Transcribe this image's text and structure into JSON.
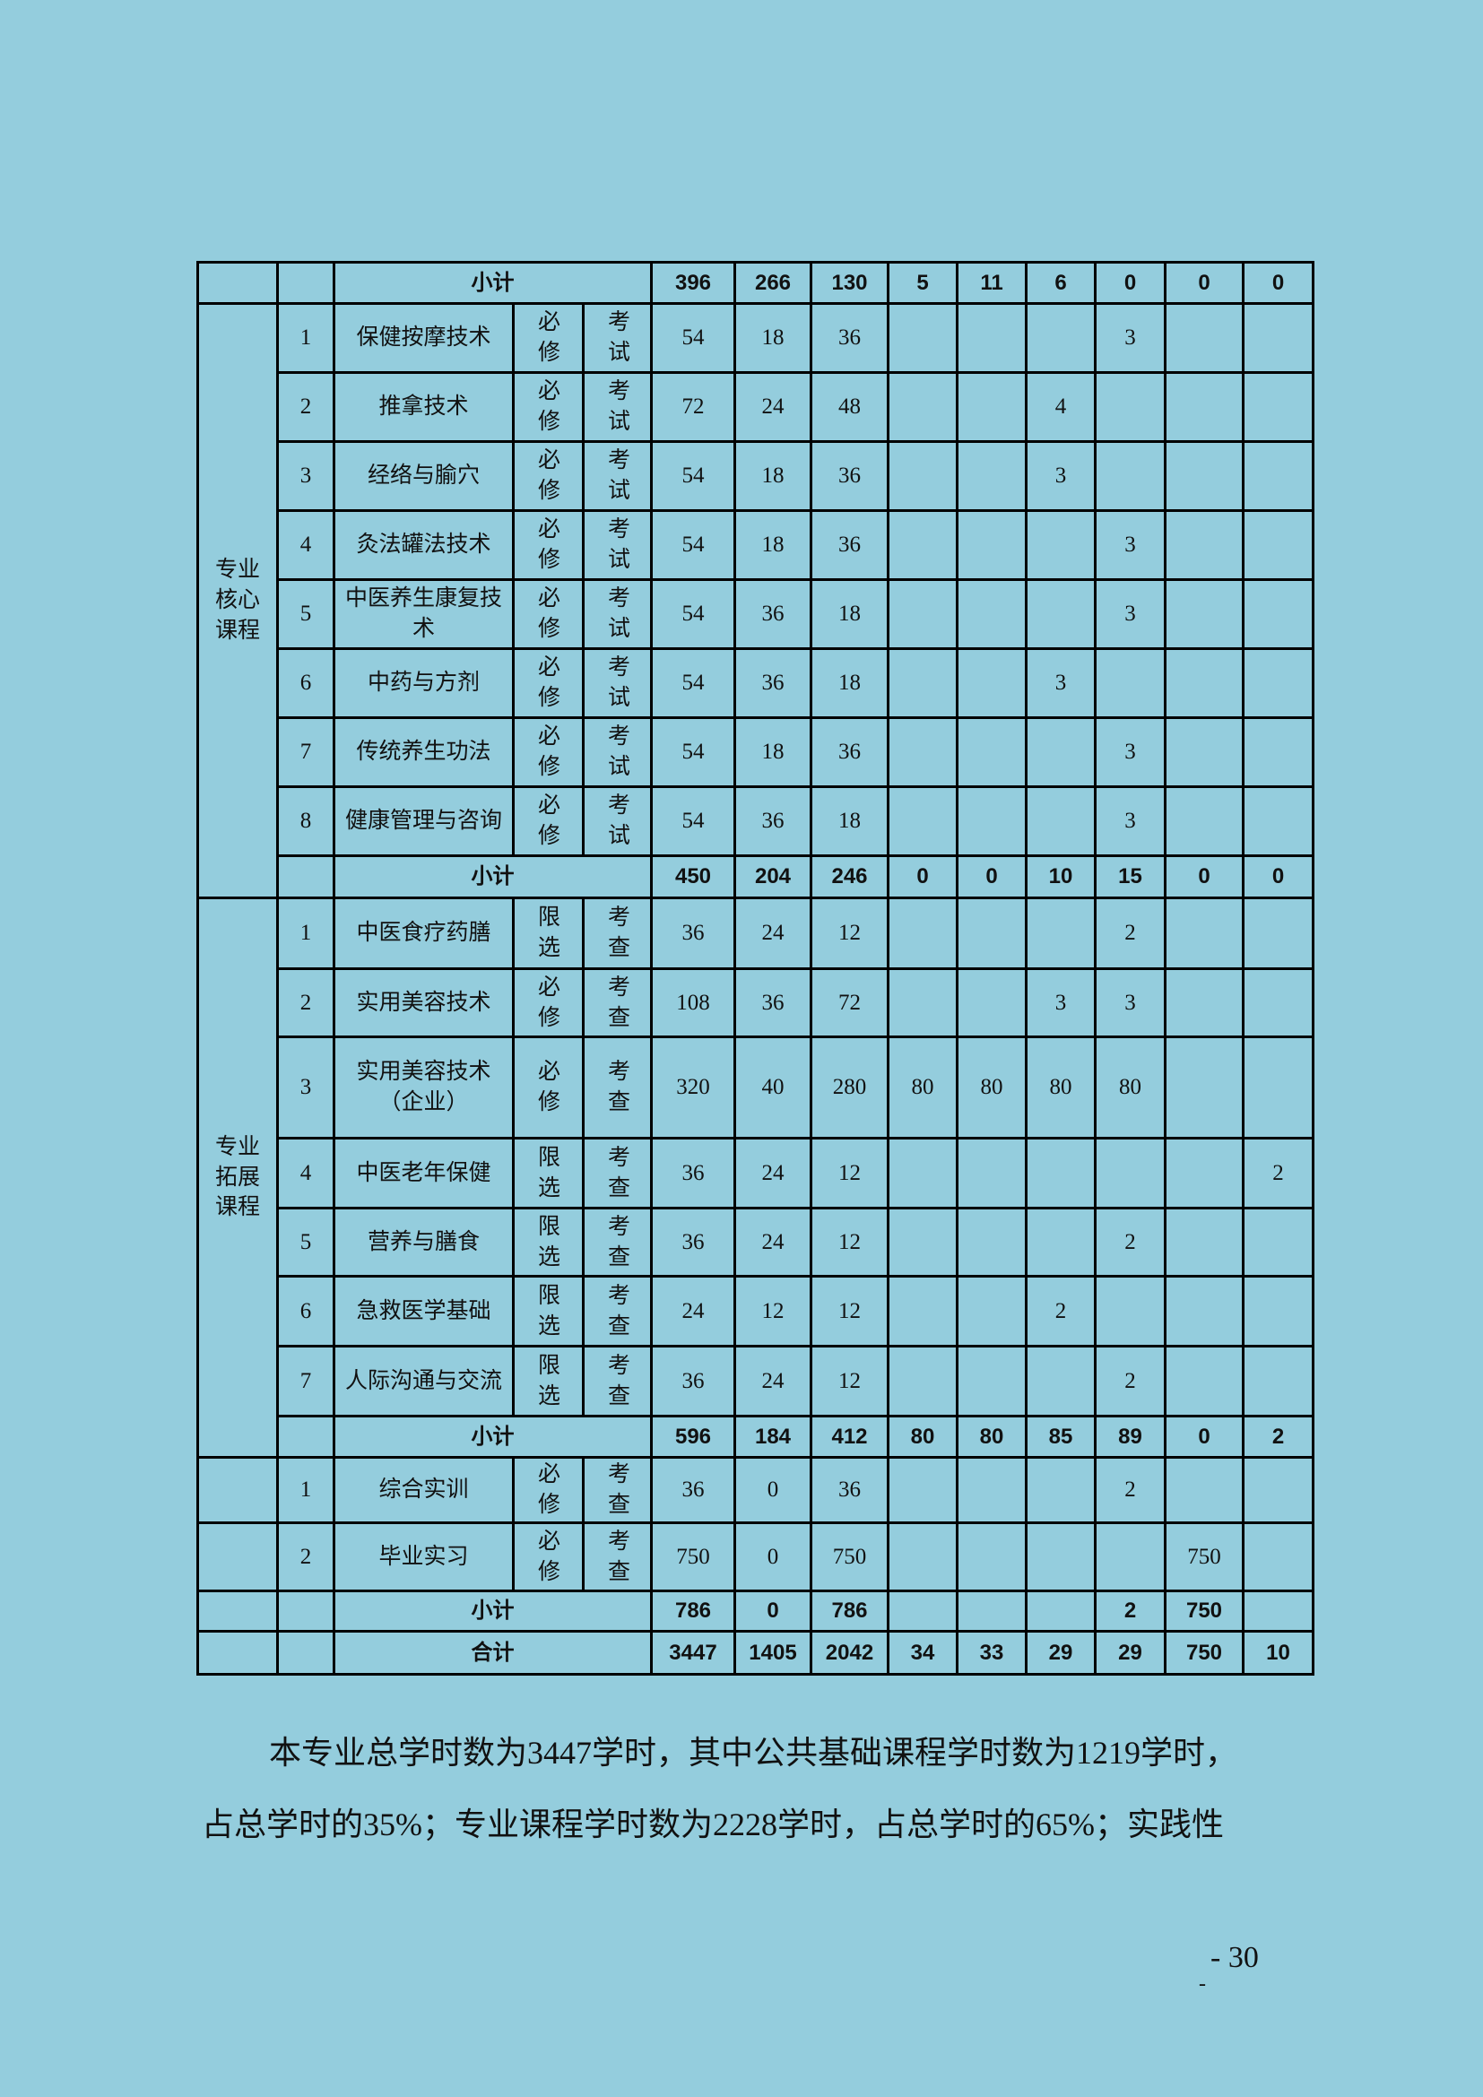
{
  "table": {
    "rows": [
      {
        "kind": "subtotal",
        "label": "小计",
        "values": [
          "396",
          "266",
          "130",
          "5",
          "11",
          "6",
          "0",
          "0",
          "0"
        ]
      },
      {
        "kind": "course",
        "group": "专业核心课程",
        "group_span": 9,
        "no": "1",
        "name": "保健按摩技术",
        "type": "必修",
        "exam": "考试",
        "values": [
          "54",
          "18",
          "36",
          "",
          "",
          "",
          "3",
          "",
          ""
        ]
      },
      {
        "kind": "course",
        "no": "2",
        "name": "推拿技术",
        "type": "必修",
        "exam": "考试",
        "values": [
          "72",
          "24",
          "48",
          "",
          "",
          "4",
          "",
          "",
          ""
        ]
      },
      {
        "kind": "course",
        "no": "3",
        "name": "经络与腧穴",
        "type": "必修",
        "exam": "考试",
        "values": [
          "54",
          "18",
          "36",
          "",
          "",
          "3",
          "",
          "",
          ""
        ]
      },
      {
        "kind": "course",
        "no": "4",
        "name": "灸法罐法技术",
        "type": "必修",
        "exam": "考试",
        "values": [
          "54",
          "18",
          "36",
          "",
          "",
          "",
          "3",
          "",
          ""
        ]
      },
      {
        "kind": "course",
        "no": "5",
        "name": "中医养生康复技术",
        "type": "必修",
        "exam": "考试",
        "values": [
          "54",
          "36",
          "18",
          "",
          "",
          "",
          "3",
          "",
          ""
        ]
      },
      {
        "kind": "course",
        "no": "6",
        "name": "中药与方剂",
        "type": "必修",
        "exam": "考试",
        "values": [
          "54",
          "36",
          "18",
          "",
          "",
          "3",
          "",
          "",
          ""
        ]
      },
      {
        "kind": "course",
        "no": "7",
        "name": "传统养生功法",
        "type": "必修",
        "exam": "考试",
        "values": [
          "54",
          "18",
          "36",
          "",
          "",
          "",
          "3",
          "",
          ""
        ]
      },
      {
        "kind": "course",
        "no": "8",
        "name": "健康管理与咨询",
        "type": "必修",
        "exam": "考试",
        "values": [
          "54",
          "36",
          "18",
          "",
          "",
          "",
          "3",
          "",
          ""
        ]
      },
      {
        "kind": "subtotal",
        "label": "小计",
        "values": [
          "450",
          "204",
          "246",
          "0",
          "0",
          "10",
          "15",
          "0",
          "0"
        ],
        "in_group": true
      },
      {
        "kind": "course",
        "group": "专业拓展课程",
        "group_span": 8,
        "no": "1",
        "name": "中医食疗药膳",
        "type": "限选",
        "exam": "考查",
        "values": [
          "36",
          "24",
          "12",
          "",
          "",
          "",
          "2",
          "",
          ""
        ]
      },
      {
        "kind": "course",
        "no": "2",
        "name": "实用美容技术",
        "type": "必修",
        "exam": "考查",
        "values": [
          "108",
          "36",
          "72",
          "",
          "",
          "3",
          "3",
          "",
          ""
        ]
      },
      {
        "kind": "course",
        "no": "3",
        "name": "实用美容技术（企业）",
        "type": "必修",
        "exam": "考查",
        "values": [
          "320",
          "40",
          "280",
          "80",
          "80",
          "80",
          "80",
          "",
          ""
        ]
      },
      {
        "kind": "course",
        "no": "4",
        "name": "中医老年保健",
        "type": "限选",
        "exam": "考查",
        "values": [
          "36",
          "24",
          "12",
          "",
          "",
          "",
          "",
          "",
          "2"
        ]
      },
      {
        "kind": "course",
        "no": "5",
        "name": "营养与膳食",
        "type": "限选",
        "exam": "考查",
        "values": [
          "36",
          "24",
          "12",
          "",
          "",
          "",
          "2",
          "",
          ""
        ]
      },
      {
        "kind": "course",
        "no": "6",
        "name": "急救医学基础",
        "type": "限选",
        "exam": "考查",
        "values": [
          "24",
          "12",
          "12",
          "",
          "",
          "2",
          "",
          "",
          ""
        ]
      },
      {
        "kind": "course",
        "no": "7",
        "name": "人际沟通与交流",
        "type": "限选",
        "exam": "考查",
        "values": [
          "36",
          "24",
          "12",
          "",
          "",
          "",
          "2",
          "",
          ""
        ]
      },
      {
        "kind": "subtotal",
        "label": "小计",
        "values": [
          "596",
          "184",
          "412",
          "80",
          "80",
          "85",
          "89",
          "0",
          "2"
        ],
        "in_group": true
      },
      {
        "kind": "course",
        "group": "",
        "group_span": 1,
        "no": "1",
        "name": "综合实训",
        "type": "必修",
        "exam": "考查",
        "values": [
          "36",
          "0",
          "36",
          "",
          "",
          "",
          "2",
          "",
          ""
        ]
      },
      {
        "kind": "course",
        "group": "",
        "group_span": 1,
        "no": "2",
        "name": "毕业实习",
        "type": "必修",
        "exam": "考查",
        "values": [
          "750",
          "0",
          "750",
          "",
          "",
          "",
          "",
          "750",
          ""
        ]
      },
      {
        "kind": "subtotal",
        "label": "小计",
        "values": [
          "786",
          "0",
          "786",
          "",
          "",
          "",
          "2",
          "750",
          ""
        ]
      },
      {
        "kind": "subtotal",
        "label": "合计",
        "values": [
          "3447",
          "1405",
          "2042",
          "34",
          "33",
          "29",
          "29",
          "750",
          "10"
        ]
      }
    ]
  },
  "paragraph": {
    "line1": "本专业总学时数为3447学时，其中公共基础课程学时数为1219学时，",
    "line2": "占总学时的35%；专业课程学时数为2228学时，占总学时的65%；实践性"
  },
  "page_number": "- 30",
  "page_number_dash": "-",
  "colors": {
    "background": "#94cddd",
    "border": "#000000"
  }
}
